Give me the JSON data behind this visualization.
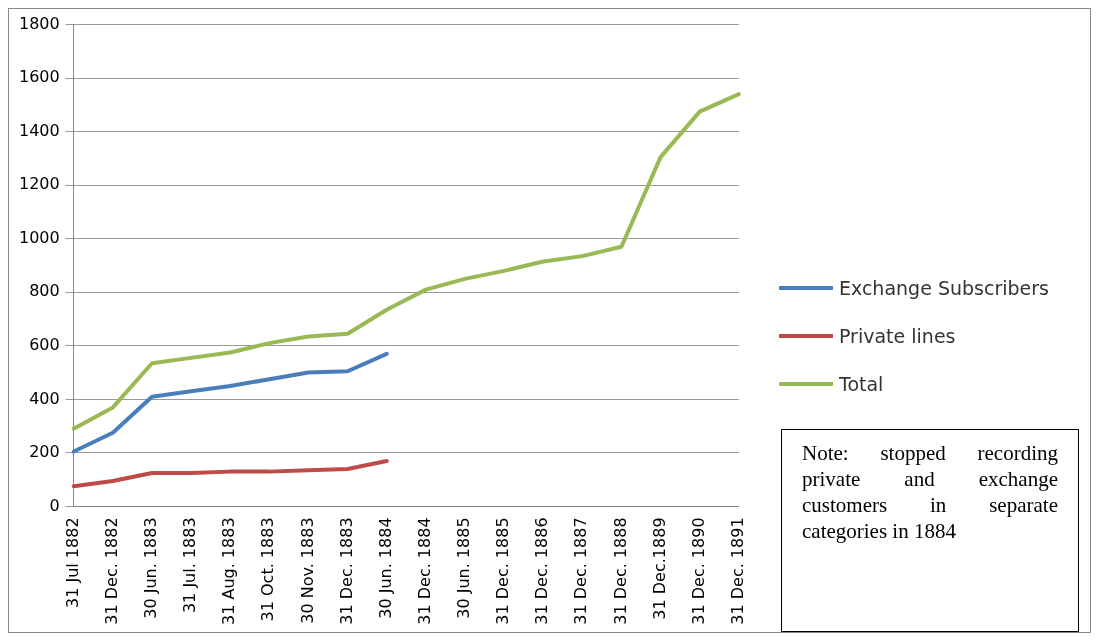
{
  "chart_data": {
    "type": "line",
    "categories": [
      "31 Jul 1882",
      "31 Dec. 1882",
      "30 Jun. 1883",
      "31 Jul. 1883",
      "31 Aug. 1883",
      "31 Oct. 1883",
      "30 Nov. 1883",
      "31 Dec. 1883",
      "30 Jun. 1884",
      "31 Dec. 1884",
      "30 Jun. 1885",
      "31 Dec. 1885",
      "31 Dec. 1886",
      "31 Dec. 1887",
      "31 Dec. 1888",
      "31 Dec.1889",
      "31 Dec. 1890",
      "31 Dec. 1891"
    ],
    "series": [
      {
        "name": "Exchange Subscribers",
        "color": "#4a7ebb",
        "values": [
          205,
          275,
          410,
          430,
          450,
          475,
          500,
          505,
          570,
          null,
          null,
          null,
          null,
          null,
          null,
          null,
          null,
          null
        ]
      },
      {
        "name": "Private lines",
        "color": "#be4b48",
        "values": [
          75,
          95,
          125,
          125,
          130,
          130,
          135,
          140,
          170,
          null,
          null,
          null,
          null,
          null,
          null,
          null,
          null,
          null
        ]
      },
      {
        "name": "Total",
        "color": "#98b954",
        "values": [
          290,
          370,
          535,
          555,
          575,
          610,
          635,
          645,
          735,
          810,
          850,
          880,
          915,
          935,
          970,
          1305,
          1475,
          1540
        ]
      }
    ],
    "ylim": [
      0,
      1800
    ],
    "yticks": [
      0,
      200,
      400,
      600,
      800,
      1000,
      1200,
      1400,
      1600,
      1800
    ],
    "grid": "y",
    "legend": "right",
    "marker": "none",
    "line_style": "solid",
    "annotations": [
      "Note: stopped recording private and exchange customers in separate categories in 1884"
    ]
  }
}
